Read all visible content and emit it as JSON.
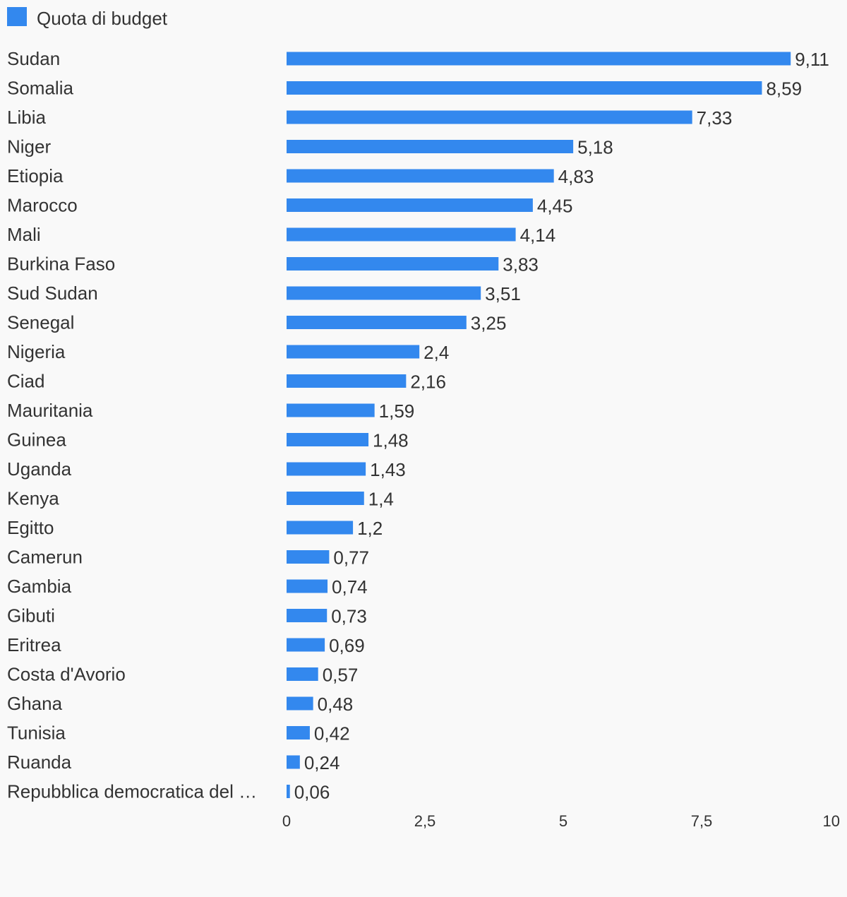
{
  "colors": {
    "bar": "#3388ee",
    "text": "#333333",
    "background": "#f9f9f9"
  },
  "legend": {
    "label": "Quota di budget"
  },
  "chart_data": {
    "type": "bar",
    "orientation": "horizontal",
    "title": "",
    "xlabel": "",
    "ylabel": "",
    "xlim": [
      0,
      10
    ],
    "x_ticks": [
      "0",
      "2,5",
      "5",
      "7,5",
      "10"
    ],
    "x_tick_values": [
      0,
      2.5,
      5,
      7.5,
      10
    ],
    "grid": false,
    "legend_position": "top-left",
    "categories": [
      "Sudan",
      "Somalia",
      "Libia",
      "Niger",
      "Etiopia",
      "Marocco",
      "Mali",
      "Burkina Faso",
      "Sud Sudan",
      "Senegal",
      "Nigeria",
      "Ciad",
      "Mauritania",
      "Guinea",
      "Uganda",
      "Kenya",
      "Egitto",
      "Camerun",
      "Gambia",
      "Gibuti",
      "Eritrea",
      "Costa d'Avorio",
      "Ghana",
      "Tunisia",
      "Ruanda",
      "Repubblica democratica del …"
    ],
    "series": [
      {
        "name": "Quota di budget",
        "values": [
          9.11,
          8.59,
          7.33,
          5.18,
          4.83,
          4.45,
          4.14,
          3.83,
          3.51,
          3.25,
          2.4,
          2.16,
          1.59,
          1.48,
          1.43,
          1.4,
          1.2,
          0.77,
          0.74,
          0.73,
          0.69,
          0.57,
          0.48,
          0.42,
          0.24,
          0.06
        ],
        "value_labels": [
          "9,11",
          "8,59",
          "7,33",
          "5,18",
          "4,83",
          "4,45",
          "4,14",
          "3,83",
          "3,51",
          "3,25",
          "2,4",
          "2,16",
          "1,59",
          "1,48",
          "1,43",
          "1,4",
          "1,2",
          "0,77",
          "0,74",
          "0,73",
          "0,69",
          "0,57",
          "0,48",
          "0,42",
          "0,24",
          "0,06"
        ]
      }
    ]
  }
}
